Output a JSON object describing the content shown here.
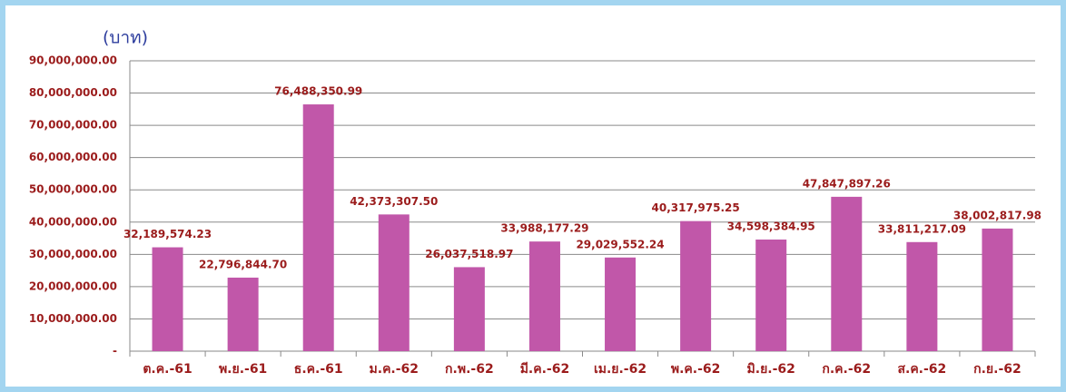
{
  "chart_data": {
    "type": "bar",
    "y_axis_label": "(บาท)",
    "categories": [
      "ต.ค.-61",
      "พ.ย.-61",
      "ธ.ค.-61",
      "ม.ค.-62",
      "ก.พ.-62",
      "มี.ค.-62",
      "เม.ย.-62",
      "พ.ค.-62",
      "มิ.ย.-62",
      "ก.ค.-62",
      "ส.ค.-62",
      "ก.ย.-62"
    ],
    "values": [
      32189574.23,
      22796844.7,
      76488350.99,
      42373307.5,
      26037518.97,
      33988177.29,
      29029552.24,
      40317975.25,
      34598384.95,
      47847897.26,
      33811217.09,
      38002817.98
    ],
    "value_labels": [
      "32,189,574.23",
      "22,796,844.70",
      "76,488,350.99",
      "42,373,307.50",
      "26,037,518.97",
      "33,988,177.29",
      "29,029,552.24",
      "40,317,975.25",
      "34,598,384.95",
      "47,847,897.26",
      "33,811,217.09",
      "38,002,817.98"
    ],
    "color": "#c157a9",
    "ylim": [
      0,
      90000000
    ],
    "yticks": [
      {
        "value": 0,
        "label": "-"
      },
      {
        "value": 10000000,
        "label": "10,000,000.00"
      },
      {
        "value": 20000000,
        "label": "20,000,000.00"
      },
      {
        "value": 30000000,
        "label": "30,000,000.00"
      },
      {
        "value": 40000000,
        "label": "40,000,000.00"
      },
      {
        "value": 50000000,
        "label": "50,000,000.00"
      },
      {
        "value": 60000000,
        "label": "60,000,000.00"
      },
      {
        "value": 70000000,
        "label": "70,000,000.00"
      },
      {
        "value": 80000000,
        "label": "80,000,000.00"
      },
      {
        "value": 90000000,
        "label": "90,000,000.00"
      }
    ],
    "grid": true
  }
}
